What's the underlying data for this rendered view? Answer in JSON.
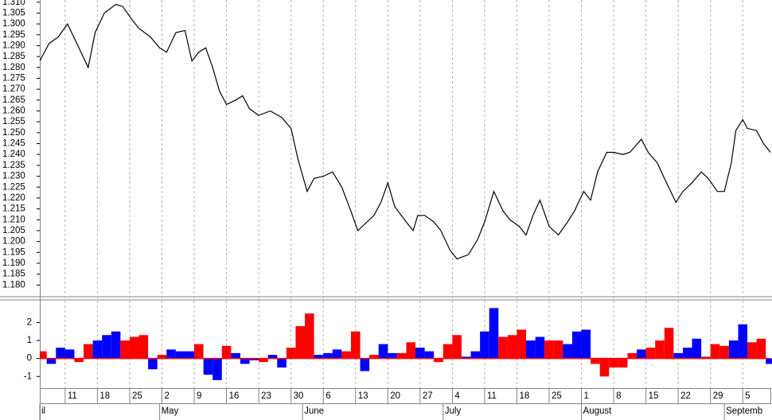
{
  "chart_data": [
    {
      "type": "line",
      "xlim": [
        -5.5,
        153
      ],
      "ylim": [
        1.175,
        1.311
      ],
      "yticks": [
        {
          "value": 1.18,
          "label": "1.180"
        },
        1.185,
        {
          "value": 1.19,
          "label": "1.190"
        },
        1.195,
        {
          "value": 1.2,
          "label": "1.200"
        },
        1.205,
        {
          "value": 1.21,
          "label": "1.210"
        },
        1.215,
        {
          "value": 1.22,
          "label": "1.220"
        },
        1.225,
        {
          "value": 1.23,
          "label": "1.230"
        },
        1.235,
        {
          "value": 1.24,
          "label": "1.240"
        },
        1.245,
        {
          "value": 1.25,
          "label": "1.250"
        },
        1.255,
        {
          "value": 1.26,
          "label": "1.260"
        },
        1.265,
        {
          "value": 1.27,
          "label": "1.270"
        },
        1.275,
        {
          "value": 1.28,
          "label": "1.280"
        },
        1.285,
        {
          "value": 1.29,
          "label": "1.290"
        },
        1.295,
        {
          "value": 1.3,
          "label": "1.300"
        },
        1.305,
        {
          "value": 1.31,
          "label": "1.310"
        }
      ],
      "xticks": [
        {
          "value": 0,
          "label": "11"
        },
        {
          "value": 7,
          "label": "18"
        },
        {
          "value": 14,
          "label": "25"
        },
        {
          "value": 21,
          "label": "2"
        },
        {
          "value": 28,
          "label": "9"
        },
        {
          "value": 35,
          "label": "16"
        },
        {
          "value": 42,
          "label": "23"
        },
        {
          "value": 49,
          "label": "30"
        },
        {
          "value": 56,
          "label": "6"
        },
        {
          "value": 63,
          "label": "13"
        },
        {
          "value": 70,
          "label": "20"
        },
        {
          "value": 77,
          "label": "27"
        },
        {
          "value": 84,
          "label": "4"
        },
        {
          "value": 91,
          "label": "11"
        },
        {
          "value": 98,
          "label": "18"
        },
        {
          "value": 105,
          "label": "25"
        },
        {
          "value": 112,
          "label": "1"
        },
        {
          "value": 119,
          "label": "8"
        },
        {
          "value": 126,
          "label": "15"
        },
        {
          "value": 133,
          "label": "22"
        },
        {
          "value": 140,
          "label": "29"
        },
        {
          "value": 147,
          "label": "5"
        }
      ],
      "month_ticks": [
        {
          "value": -5.5,
          "label": "il"
        },
        {
          "value": 20.5,
          "label": "May"
        },
        {
          "value": 51.5,
          "label": "June"
        },
        {
          "value": 82,
          "label": "July"
        },
        {
          "value": 112,
          "label": "August"
        },
        {
          "value": 143,
          "label": "Septemb"
        }
      ],
      "grid": true,
      "color": "#000000",
      "x": [
        -5.5,
        -3.5,
        -1.5,
        0.5,
        3,
        5,
        6.5,
        8.5,
        11,
        12.5,
        14.5,
        16,
        18.5,
        20.5,
        22,
        24,
        26,
        27.5,
        29,
        30.5,
        32,
        33.5,
        35,
        37,
        38.5,
        40,
        42,
        44.5,
        47,
        49,
        50.5,
        52.5,
        54,
        56,
        58,
        60,
        62,
        63.5,
        65.5,
        67,
        68.5,
        70,
        71.5,
        74,
        75.5,
        76.5,
        78,
        80,
        81.5,
        83.5,
        85,
        87.5,
        89.5,
        91,
        93,
        95,
        96.5,
        98.5,
        100,
        101.5,
        103,
        105,
        107,
        109,
        110.5,
        112.5,
        114,
        115.5,
        117.5,
        119,
        121,
        122.5,
        125,
        126.5,
        128.5,
        130,
        132.5,
        134,
        136,
        138,
        139.5,
        141.5,
        143,
        144.5,
        145.5,
        147,
        148,
        150,
        151.5,
        153
      ],
      "values": [
        1.283,
        1.291,
        1.294,
        1.3,
        1.289,
        1.28,
        1.296,
        1.305,
        1.309,
        1.308,
        1.302,
        1.298,
        1.294,
        1.289,
        1.287,
        1.296,
        1.297,
        1.283,
        1.287,
        1.289,
        1.28,
        1.269,
        1.263,
        1.265,
        1.267,
        1.261,
        1.258,
        1.26,
        1.257,
        1.252,
        1.238,
        1.223,
        1.229,
        1.23,
        1.232,
        1.225,
        1.214,
        1.205,
        1.209,
        1.212,
        1.218,
        1.227,
        1.216,
        1.209,
        1.205,
        1.212,
        1.212,
        1.209,
        1.205,
        1.196,
        1.192,
        1.194,
        1.201,
        1.209,
        1.223,
        1.214,
        1.21,
        1.207,
        1.203,
        1.212,
        1.219,
        1.207,
        1.203,
        1.209,
        1.214,
        1.223,
        1.219,
        1.232,
        1.241,
        1.241,
        1.24,
        1.241,
        1.247,
        1.241,
        1.236,
        1.229,
        1.218,
        1.223,
        1.227,
        1.232,
        1.229,
        1.223,
        1.223,
        1.236,
        1.251,
        1.256,
        1.252,
        1.251,
        1.245,
        1.241
      ]
    },
    {
      "type": "histogram-osc",
      "xlim": [
        -5.5,
        153
      ],
      "ylim": [
        -1.65,
        3.3
      ],
      "yticks": [
        -1,
        0,
        1,
        2
      ],
      "x": [
        -5,
        -3,
        -1,
        1,
        3,
        5,
        7,
        9,
        11,
        13,
        15,
        17,
        19,
        21,
        23,
        25,
        27,
        29,
        31,
        33,
        35,
        37,
        39,
        41,
        43,
        45,
        47,
        49,
        51,
        53,
        55,
        57,
        59,
        61,
        63,
        65,
        67,
        69,
        71,
        73,
        75,
        77,
        79,
        81,
        83,
        85,
        87,
        89,
        91,
        93,
        95,
        97,
        99,
        101,
        103,
        105,
        107,
        109,
        111,
        113,
        115,
        117,
        119,
        121,
        123,
        125,
        127,
        129,
        131,
        133,
        135,
        137,
        139,
        141,
        143,
        145,
        147,
        149,
        151,
        153
      ],
      "values": [
        0.4,
        -0.3,
        0.6,
        0.5,
        -0.2,
        0.8,
        1.0,
        1.3,
        1.5,
        1.0,
        1.2,
        1.3,
        -0.6,
        0.2,
        0.5,
        0.4,
        0.4,
        0.8,
        -0.9,
        -1.2,
        0.7,
        0.3,
        -0.3,
        -0.1,
        -0.2,
        0.2,
        -0.5,
        0.6,
        1.8,
        2.5,
        0.2,
        0.3,
        0.5,
        0.4,
        1.5,
        -0.7,
        0.2,
        0.8,
        0.3,
        0.3,
        0.9,
        0.6,
        0.4,
        -0.2,
        0.8,
        1.3,
        0.1,
        0.4,
        1.5,
        2.8,
        1.2,
        1.3,
        1.6,
        1.0,
        1.2,
        1.0,
        1.0,
        0.8,
        1.5,
        1.6,
        -0.3,
        -1.0,
        -0.5,
        -0.5,
        0.3,
        0.5,
        0.6,
        1.0,
        1.7,
        0.3,
        0.6,
        1.1,
        0.1,
        0.8,
        0.7,
        1.0,
        1.9,
        0.9,
        1.1,
        -0.3
      ],
      "colors": [
        "#ff0000",
        "#0000ff",
        "#0000ff",
        "#0000ff",
        "#ff0000",
        "#ff0000",
        "#0000ff",
        "#0000ff",
        "#0000ff",
        "#ff0000",
        "#ff0000",
        "#ff0000",
        "#0000ff",
        "#ff0000",
        "#0000ff",
        "#0000ff",
        "#0000ff",
        "#ff0000",
        "#0000ff",
        "#0000ff",
        "#ff0000",
        "#0000ff",
        "#0000ff",
        "#0000ff",
        "#ff0000",
        "#0000ff",
        "#0000ff",
        "#ff0000",
        "#ff0000",
        "#ff0000",
        "#0000ff",
        "#0000ff",
        "#0000ff",
        "#ff0000",
        "#ff0000",
        "#0000ff",
        "#ff0000",
        "#0000ff",
        "#0000ff",
        "#ff0000",
        "#ff0000",
        "#0000ff",
        "#0000ff",
        "#ff0000",
        "#ff0000",
        "#ff0000",
        "#0000ff",
        "#0000ff",
        "#0000ff",
        "#0000ff",
        "#ff0000",
        "#ff0000",
        "#ff0000",
        "#0000ff",
        "#0000ff",
        "#ff0000",
        "#ff0000",
        "#0000ff",
        "#0000ff",
        "#0000ff",
        "#ff0000",
        "#ff0000",
        "#ff0000",
        "#ff0000",
        "#ff0000",
        "#0000ff",
        "#ff0000",
        "#ff0000",
        "#ff0000",
        "#0000ff",
        "#0000ff",
        "#0000ff",
        "#ff0000",
        "#ff0000",
        "#ff0000",
        "#0000ff",
        "#0000ff",
        "#ff0000",
        "#ff0000",
        "#0000ff"
      ],
      "baseline_color": "#ff0000"
    }
  ]
}
